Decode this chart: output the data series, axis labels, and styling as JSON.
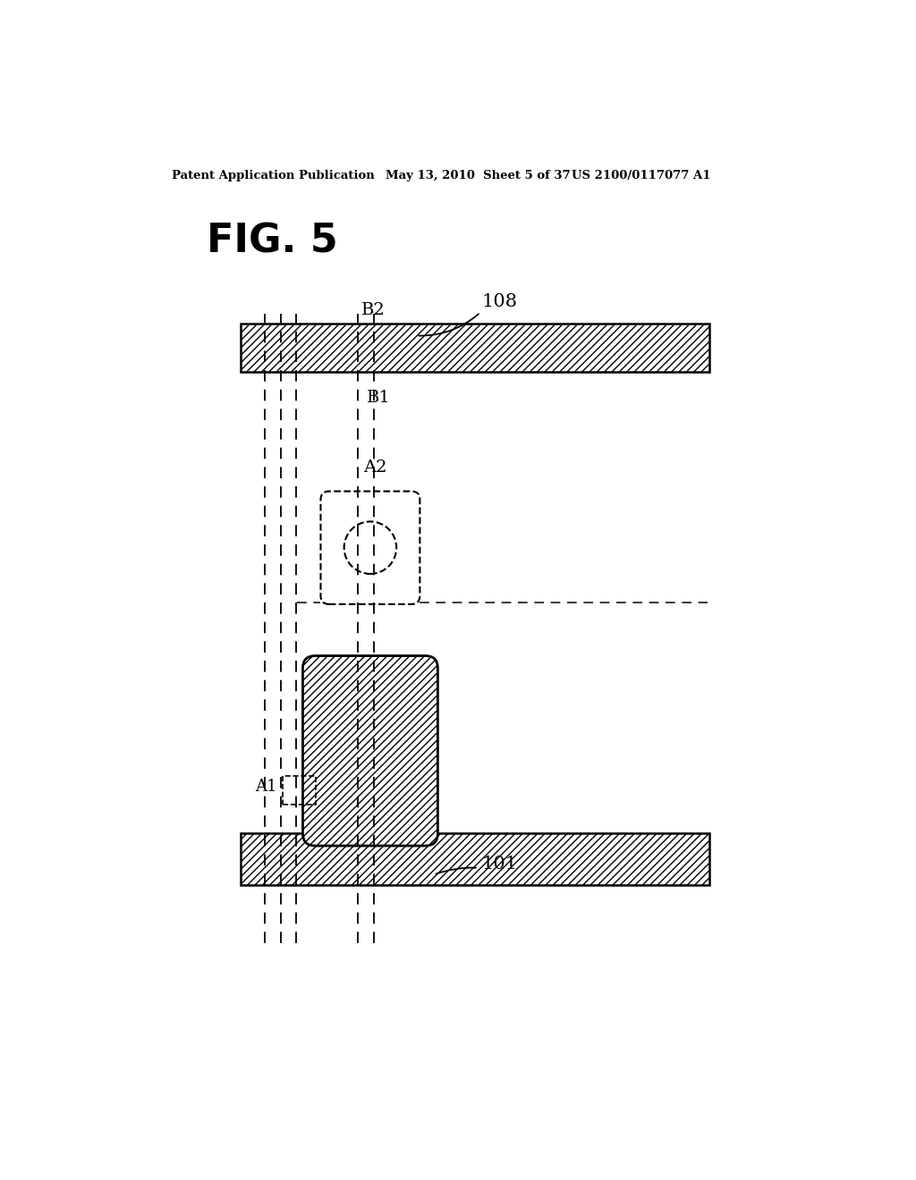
{
  "bg_color": "#ffffff",
  "header_line1": "Patent Application Publication",
  "header_line2": "May 13, 2010  Sheet 5 of 37",
  "header_line3": "US 2100/0117077 A1",
  "header_full": "Patent Application Publication     May 13, 2010  Sheet 5 of 37       US 2100/0117077 A1",
  "fig_label": "FIG. 5",
  "label_108": "108",
  "label_101": "101",
  "label_B1": "B1",
  "label_B2": "B2",
  "label_A1": "A1",
  "label_A2": "A2",
  "line_color": "#000000"
}
